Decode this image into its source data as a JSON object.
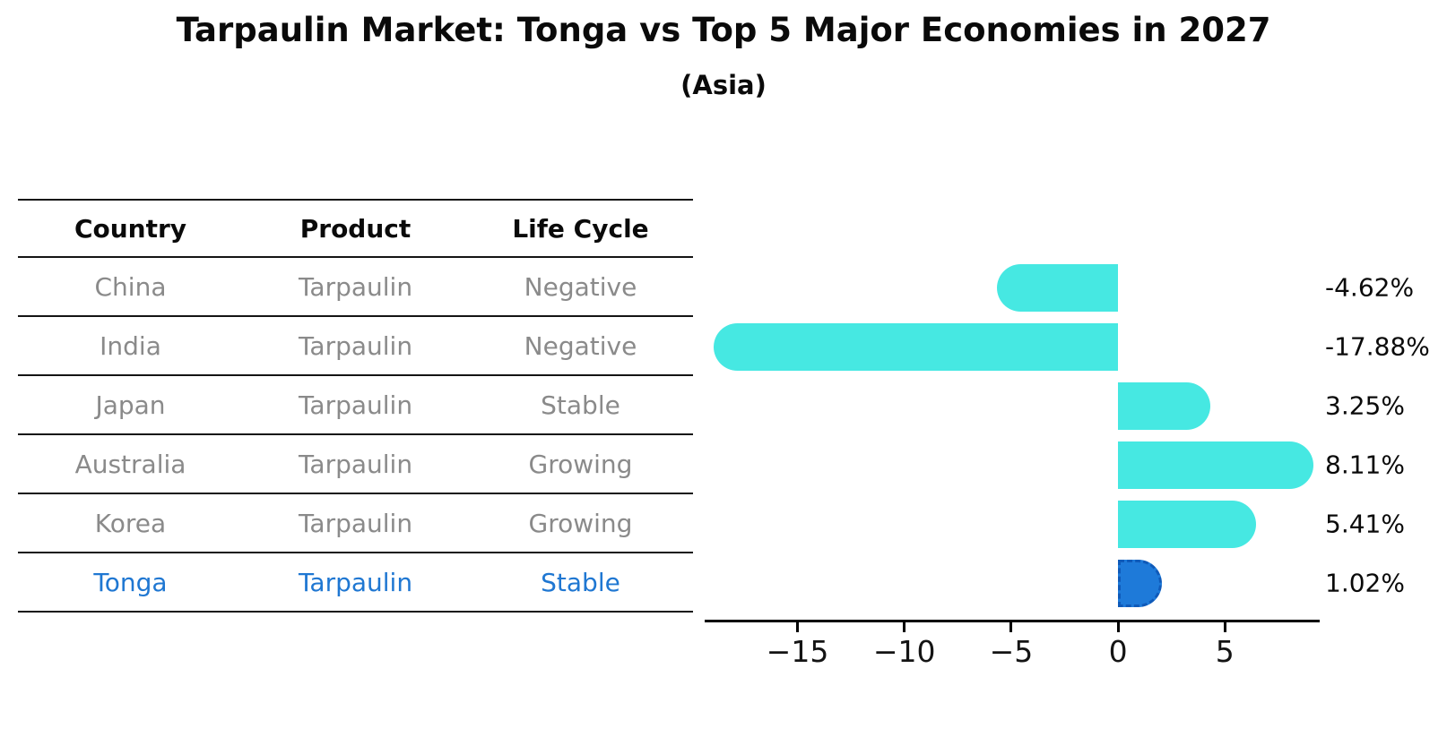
{
  "title": "Tarpaulin Market: Tonga vs Top 5 Major Economies in 2027",
  "subtitle": "(Asia)",
  "table": {
    "headers": [
      "Country",
      "Product",
      "Life Cycle"
    ],
    "rows": [
      {
        "country": "China",
        "product": "Tarpaulin",
        "life_cycle": "Negative",
        "highlight": false
      },
      {
        "country": "India",
        "product": "Tarpaulin",
        "life_cycle": "Negative",
        "highlight": false
      },
      {
        "country": "Japan",
        "product": "Tarpaulin",
        "life_cycle": "Stable",
        "highlight": false
      },
      {
        "country": "Australia",
        "product": "Tarpaulin",
        "life_cycle": "Growing",
        "highlight": false
      },
      {
        "country": "Korea",
        "product": "Tarpaulin",
        "life_cycle": "Growing",
        "highlight": false
      },
      {
        "country": "Tonga",
        "product": "Tarpaulin",
        "life_cycle": "Stable",
        "highlight": true
      }
    ]
  },
  "chart_data": {
    "type": "bar",
    "orientation": "horizontal",
    "title": "Tarpaulin Market: Tonga vs Top 5 Major Economies in 2027",
    "subtitle": "(Asia)",
    "categories": [
      "China",
      "India",
      "Japan",
      "Australia",
      "Korea",
      "Tonga"
    ],
    "values": [
      -4.62,
      -17.88,
      3.25,
      8.11,
      5.41,
      1.02
    ],
    "value_labels": [
      "-4.62%",
      "-17.88%",
      "3.25%",
      "8.11%",
      "5.41%",
      "1.02%"
    ],
    "xlim": [
      -19.3,
      9.35
    ],
    "xticks": [
      -15,
      -10,
      -5,
      0,
      5
    ],
    "xtick_labels": [
      "−15",
      "−10",
      "−5",
      "0",
      "5"
    ],
    "grid": false,
    "legend_position": "none",
    "bar_color": "#46E8E2",
    "highlight_color": "#1E7AD9",
    "highlight_edge_color": "#0F5AB9",
    "highlight_index": 5
  },
  "colors": {
    "bar_cyan": "#46E8E2",
    "bar_blue": "#1E7AD9",
    "bar_blue_dash": "#0F5AB9",
    "highlight_text_blue": "#1F77D2",
    "cell_gray": "#8A8A8A",
    "line_black": "#141414"
  }
}
